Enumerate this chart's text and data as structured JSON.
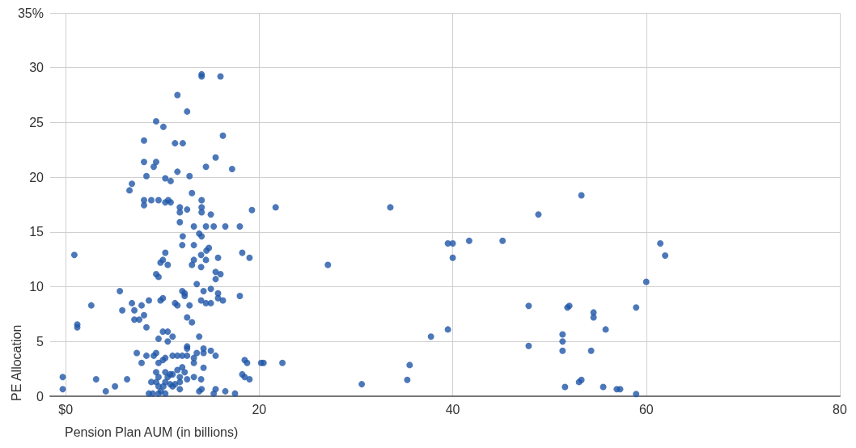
{
  "chart_data": {
    "type": "scatter",
    "xlabel": "Pension Plan AUM (in billions)",
    "ylabel": "PE Allocation",
    "xlim": [
      -1.6,
      80
    ],
    "xticks": [
      {
        "value": 0,
        "label": "$0"
      },
      20,
      40,
      60,
      80
    ],
    "ylim": [
      0,
      35
    ],
    "yticks": [
      0,
      5,
      10,
      15,
      20,
      25,
      30,
      {
        "value": 35,
        "label": "35%"
      }
    ],
    "grid": true,
    "marker": "circle",
    "series": [
      {
        "color": "#1f56a8",
        "x": [
          14.05,
          14.05,
          16.0,
          11.55,
          12.55,
          9.35,
          10.1,
          16.25,
          8.1,
          11.3,
          12.1,
          15.5,
          8.1,
          9.35,
          9.1,
          14.5,
          17.2,
          11.55,
          8.35,
          12.8,
          10.3,
          10.85,
          6.85,
          6.6,
          13.05,
          8.1,
          8.1,
          8.85,
          9.6,
          10.3,
          10.6,
          10.85,
          14.05,
          14.05,
          14.05,
          11.8,
          11.8,
          11.8,
          12.55,
          15.0,
          19.25,
          13.25,
          14.5,
          15.3,
          16.5,
          18.0,
          13.8,
          14.05,
          12.1,
          0.9,
          10.3,
          12.05,
          13.25,
          14.8,
          14.55,
          14.0,
          18.25,
          19.0,
          10.05,
          9.8,
          10.55,
          13.25,
          13.05,
          14.5,
          15.75,
          14.0,
          15.5,
          16.0,
          15.5,
          9.35,
          9.6,
          13.55,
          5.6,
          12.05,
          12.3,
          12.3,
          14.25,
          15.0,
          15.75,
          15.75,
          16.25,
          18.0,
          10.05,
          9.8,
          8.6,
          6.85,
          7.85,
          11.3,
          11.55,
          12.8,
          14.0,
          14.5,
          15.0,
          2.65,
          5.85,
          7.1,
          8.1,
          7.1,
          7.6,
          12.55,
          13.05,
          1.2,
          1.2,
          8.35,
          10.05,
          10.55,
          11.05,
          9.6,
          10.55,
          13.8,
          12.55,
          12.55,
          14.25,
          14.25,
          15.0,
          15.5,
          7.35,
          8.35,
          9.1,
          9.35,
          11.05,
          11.55,
          12.05,
          12.55,
          13.55,
          13.25,
          13.25,
          7.85,
          10.3,
          10.05,
          9.6,
          14.25,
          18.5,
          18.75,
          20.2,
          20.45,
          -0.3,
          -0.3,
          3.15,
          6.35,
          5.1,
          4.15,
          9.35,
          9.6,
          9.35,
          8.85,
          9.6,
          10.1,
          10.3,
          10.55,
          10.8,
          11.05,
          11.55,
          12.05,
          12.3,
          11.8,
          11.8,
          11.05,
          11.8,
          12.55,
          10.3,
          9.85,
          8.6,
          9.0,
          9.6,
          10.3,
          10.8,
          11.3,
          13.25,
          14.0,
          13.8,
          14.05,
          15.3,
          15.5,
          16.5,
          17.5,
          18.25,
          18.5,
          19.0,
          21.7,
          33.55,
          48.85,
          39.5,
          40.0,
          41.7,
          45.15,
          40.0,
          27.1,
          47.85,
          39.5,
          37.75,
          47.85,
          22.4,
          35.55,
          35.3,
          30.6,
          53.3,
          61.45,
          61.95,
          60.0,
          51.85,
          52.05,
          54.55,
          54.55,
          58.95,
          55.8,
          51.35,
          51.35,
          51.35,
          54.3,
          51.6,
          53.05,
          53.3,
          55.55,
          56.95,
          57.3,
          58.95
        ],
        "values": [
          29.4,
          29.2,
          29.2,
          27.5,
          26.0,
          25.1,
          24.6,
          23.8,
          23.35,
          23.1,
          23.1,
          21.8,
          21.4,
          21.4,
          20.95,
          20.95,
          20.75,
          20.5,
          20.1,
          20.1,
          19.9,
          19.65,
          19.4,
          18.8,
          18.55,
          17.9,
          17.45,
          17.9,
          17.9,
          17.7,
          17.9,
          17.7,
          17.9,
          17.25,
          16.8,
          17.25,
          16.8,
          15.9,
          17.05,
          16.6,
          17.0,
          15.5,
          15.5,
          15.5,
          15.5,
          15.5,
          14.85,
          14.6,
          14.6,
          12.9,
          13.1,
          13.8,
          13.8,
          13.55,
          13.3,
          12.9,
          13.1,
          12.65,
          12.45,
          12.2,
          12.0,
          12.45,
          12.0,
          12.45,
          12.65,
          11.8,
          11.35,
          11.15,
          10.7,
          11.15,
          10.9,
          10.25,
          9.6,
          9.6,
          9.4,
          9.15,
          9.6,
          9.8,
          9.4,
          8.95,
          8.75,
          9.15,
          8.95,
          8.75,
          8.75,
          8.5,
          8.3,
          8.5,
          8.3,
          8.3,
          8.75,
          8.5,
          8.5,
          8.3,
          7.85,
          7.85,
          7.4,
          7.0,
          7.0,
          7.2,
          6.75,
          6.55,
          6.3,
          6.3,
          5.9,
          5.9,
          5.45,
          5.25,
          5.0,
          5.45,
          4.55,
          4.35,
          4.35,
          3.95,
          4.15,
          3.7,
          3.95,
          3.7,
          3.7,
          3.95,
          3.7,
          3.7,
          3.7,
          3.7,
          3.95,
          3.5,
          3.05,
          3.05,
          3.5,
          3.3,
          3.05,
          2.6,
          3.3,
          3.05,
          3.05,
          3.05,
          1.75,
          0.65,
          1.55,
          1.55,
          0.9,
          0.45,
          2.2,
          1.75,
          1.3,
          1.3,
          0.9,
          0.9,
          2.2,
          1.75,
          2.0,
          2.0,
          2.4,
          2.65,
          2.2,
          1.75,
          1.3,
          0.9,
          0.65,
          1.55,
          1.3,
          0.45,
          0.25,
          0.25,
          0.25,
          0.25,
          1.1,
          1.1,
          1.75,
          1.55,
          0.45,
          0.65,
          0.25,
          0.65,
          0.45,
          0.25,
          2.0,
          1.75,
          1.55,
          17.25,
          17.25,
          16.6,
          13.95,
          13.95,
          14.2,
          14.2,
          12.65,
          12.0,
          8.25,
          6.1,
          5.45,
          4.6,
          3.05,
          2.85,
          1.5,
          1.1,
          18.35,
          13.95,
          12.85,
          10.45,
          8.1,
          8.25,
          7.65,
          7.2,
          8.1,
          6.1,
          5.65,
          5.0,
          4.15,
          4.15,
          0.85,
          1.3,
          1.5,
          0.85,
          0.65,
          0.65,
          0.2
        ]
      }
    ]
  }
}
